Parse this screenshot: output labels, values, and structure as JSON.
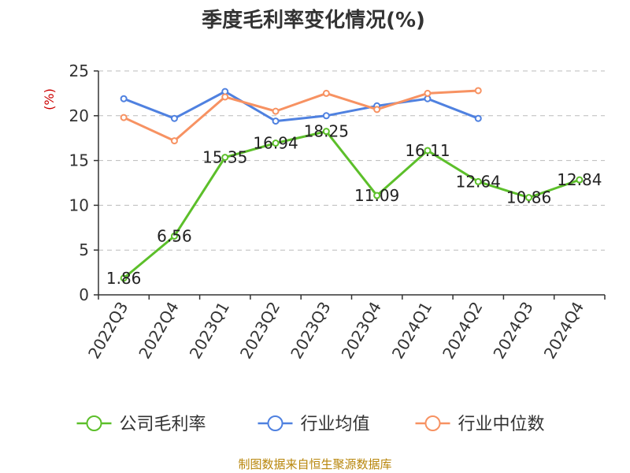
{
  "chart_data": {
    "type": "line",
    "title": "季度毛利率变化情况(%)",
    "y_unit": "(%)",
    "categories": [
      "2022Q3",
      "2022Q4",
      "2023Q1",
      "2023Q2",
      "2023Q3",
      "2023Q4",
      "2024Q1",
      "2024Q2",
      "2024Q3",
      "2024Q4"
    ],
    "ylim": [
      0,
      25
    ],
    "yticks": [
      0,
      5,
      10,
      15,
      20,
      25
    ],
    "grid": true,
    "legend_position": "bottom",
    "series": [
      {
        "name": "公司毛利率",
        "color": "#5cbf2a",
        "values": [
          1.86,
          6.56,
          15.35,
          16.94,
          18.25,
          11.09,
          16.11,
          12.64,
          10.86,
          12.84
        ],
        "labels": [
          "1.86",
          "6.56",
          "15.35",
          "16.94",
          "18.25",
          "11.09",
          "16.11",
          "12.64",
          "10.86",
          "12.84"
        ]
      },
      {
        "name": "行业均值",
        "color": "#4f81e0",
        "values": [
          21.9,
          19.7,
          22.7,
          19.4,
          20.0,
          21.1,
          21.9,
          19.7,
          null,
          null
        ]
      },
      {
        "name": "行业中位数",
        "color": "#f79262",
        "values": [
          19.8,
          17.2,
          22.1,
          20.5,
          22.5,
          20.7,
          22.5,
          22.8,
          null,
          null
        ]
      }
    ]
  },
  "source": "制图数据来自恒生聚源数据库"
}
